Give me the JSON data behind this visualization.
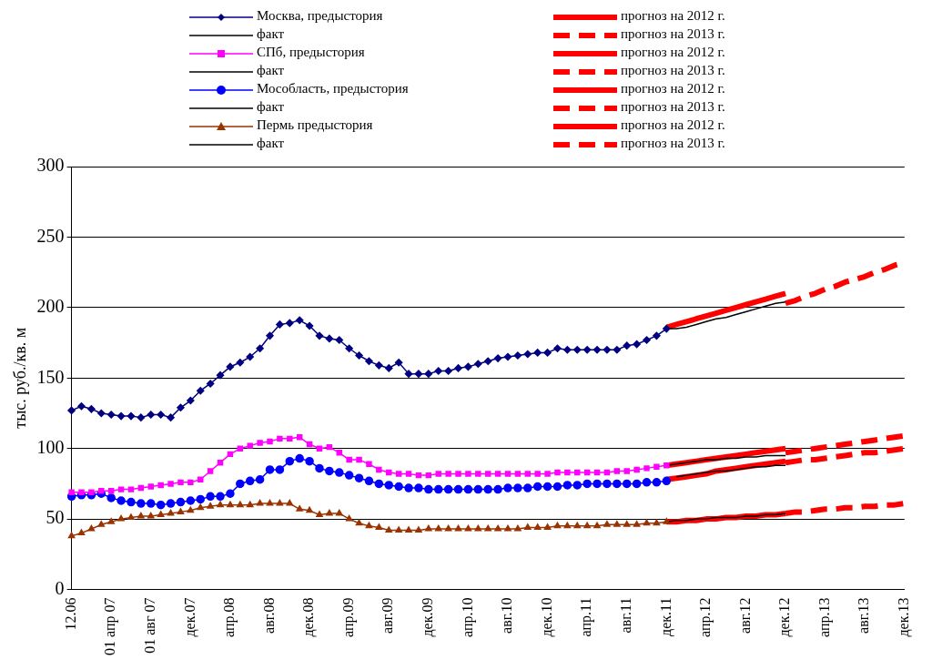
{
  "chart_data": {
    "type": "line",
    "ylabel": "тыс. руб./кв. м",
    "ylim": [
      0,
      300
    ],
    "yticks": [
      0,
      50,
      100,
      150,
      200,
      250,
      300
    ],
    "grid": "y",
    "legend": "top",
    "categories": [
      "12.06",
      null,
      null,
      null,
      "01 апр 07",
      null,
      null,
      null,
      "01 авг 07",
      null,
      null,
      null,
      "дек.07",
      null,
      null,
      null,
      "апр.08",
      null,
      null,
      null,
      "авг.08",
      null,
      null,
      null,
      "дек.08",
      null,
      null,
      null,
      "апр.09",
      null,
      null,
      null,
      "авг.09",
      null,
      null,
      null,
      "дек.09",
      null,
      null,
      null,
      "апр.10",
      null,
      null,
      null,
      "авг.10",
      null,
      null,
      null,
      "дек.10",
      null,
      null,
      null,
      "апр.11",
      null,
      null,
      null,
      "авг.11",
      null,
      null,
      null,
      "дек.11",
      null,
      null,
      null,
      "апр.12",
      null,
      null,
      null,
      "авг.12",
      null,
      null,
      null,
      "дек.12",
      null,
      null,
      null,
      "апр.13",
      null,
      null,
      null,
      "авг.13",
      null,
      null,
      null,
      "дек.13"
    ],
    "series": [
      {
        "name": "Москва, предыстория",
        "color": "#000080",
        "marker": "diamond",
        "line_style": "solid",
        "values": [
          127,
          130,
          128,
          125,
          124,
          123,
          123,
          122,
          124,
          124,
          122,
          129,
          134,
          141,
          146,
          152,
          158,
          161,
          165,
          171,
          180,
          188,
          189,
          191,
          187,
          180,
          178,
          177,
          171,
          166,
          162,
          159,
          157,
          161,
          153,
          153,
          153,
          155,
          155,
          157,
          158,
          160,
          162,
          164,
          165,
          166,
          167,
          168,
          168,
          171,
          170,
          170,
          170,
          170,
          170,
          170,
          173,
          174,
          177,
          180,
          185,
          null,
          null,
          null,
          null,
          null,
          null,
          null,
          null,
          null,
          null,
          null,
          null,
          null,
          null,
          null,
          null,
          null,
          null,
          null,
          null,
          null,
          null,
          null,
          null
        ]
      },
      {
        "name": "факт",
        "color": "#000000",
        "marker": "none",
        "line_style": "solid",
        "values": [
          null,
          null,
          null,
          null,
          null,
          null,
          null,
          null,
          null,
          null,
          null,
          null,
          null,
          null,
          null,
          null,
          null,
          null,
          null,
          null,
          null,
          null,
          null,
          null,
          null,
          null,
          null,
          null,
          null,
          null,
          null,
          null,
          null,
          null,
          null,
          null,
          null,
          null,
          null,
          null,
          null,
          null,
          null,
          null,
          null,
          null,
          null,
          null,
          null,
          null,
          null,
          null,
          null,
          null,
          null,
          null,
          null,
          null,
          null,
          null,
          185,
          185,
          186,
          188,
          190,
          192,
          193,
          195,
          197,
          199,
          201,
          203,
          204,
          null,
          null,
          null,
          null,
          null,
          null,
          null,
          null,
          null,
          null,
          null,
          null
        ]
      },
      {
        "name": "прогноз на 2012 г.",
        "color": "#ff0000",
        "marker": "none",
        "line_style": "solid",
        "values": [
          null,
          null,
          null,
          null,
          null,
          null,
          null,
          null,
          null,
          null,
          null,
          null,
          null,
          null,
          null,
          null,
          null,
          null,
          null,
          null,
          null,
          null,
          null,
          null,
          null,
          null,
          null,
          null,
          null,
          null,
          null,
          null,
          null,
          null,
          null,
          null,
          null,
          null,
          null,
          null,
          null,
          null,
          null,
          null,
          null,
          null,
          null,
          null,
          null,
          null,
          null,
          null,
          null,
          null,
          null,
          null,
          null,
          null,
          null,
          null,
          186,
          188,
          190,
          192,
          194,
          196,
          198,
          200,
          202,
          204,
          206,
          208,
          210,
          null,
          null,
          null,
          null,
          null,
          null,
          null,
          null,
          null,
          null,
          null,
          null
        ]
      },
      {
        "name": "прогноз на 2013 г.",
        "color": "#ff0000",
        "marker": "none",
        "line_style": "dashed",
        "values": [
          null,
          null,
          null,
          null,
          null,
          null,
          null,
          null,
          null,
          null,
          null,
          null,
          null,
          null,
          null,
          null,
          null,
          null,
          null,
          null,
          null,
          null,
          null,
          null,
          null,
          null,
          null,
          null,
          null,
          null,
          null,
          null,
          null,
          null,
          null,
          null,
          null,
          null,
          null,
          null,
          null,
          null,
          null,
          null,
          null,
          null,
          null,
          null,
          null,
          null,
          null,
          null,
          null,
          null,
          null,
          null,
          null,
          null,
          null,
          null,
          null,
          null,
          null,
          null,
          null,
          null,
          null,
          null,
          null,
          null,
          null,
          null,
          203,
          205,
          208,
          210,
          213,
          215,
          218,
          220,
          222,
          225,
          227,
          230,
          232
        ]
      },
      {
        "name": "СПб, предыстория",
        "color": "#ff00ff",
        "marker": "square",
        "line_style": "solid",
        "values": [
          69,
          69,
          69,
          70,
          70,
          71,
          71,
          72,
          73,
          74,
          75,
          76,
          76,
          78,
          84,
          90,
          96,
          100,
          102,
          104,
          105,
          107,
          107,
          108,
          103,
          100,
          101,
          97,
          92,
          92,
          89,
          85,
          83,
          82,
          82,
          81,
          81,
          82,
          82,
          82,
          82,
          82,
          82,
          82,
          82,
          82,
          82,
          82,
          82,
          83,
          83,
          83,
          83,
          83,
          83,
          84,
          84,
          85,
          86,
          87,
          88,
          null,
          null,
          null,
          null,
          null,
          null,
          null,
          null,
          null,
          null,
          null,
          null,
          null,
          null,
          null,
          null,
          null,
          null,
          null,
          null,
          null,
          null,
          null,
          null
        ]
      },
      {
        "name": "факт",
        "color": "#000000",
        "marker": "none",
        "line_style": "solid",
        "values": [
          null,
          null,
          null,
          null,
          null,
          null,
          null,
          null,
          null,
          null,
          null,
          null,
          null,
          null,
          null,
          null,
          null,
          null,
          null,
          null,
          null,
          null,
          null,
          null,
          null,
          null,
          null,
          null,
          null,
          null,
          null,
          null,
          null,
          null,
          null,
          null,
          null,
          null,
          null,
          null,
          null,
          null,
          null,
          null,
          null,
          null,
          null,
          null,
          null,
          null,
          null,
          null,
          null,
          null,
          null,
          null,
          null,
          null,
          null,
          null,
          88,
          89,
          90,
          91,
          92,
          92,
          93,
          93,
          94,
          94,
          95,
          95,
          95,
          null,
          null,
          null,
          null,
          null,
          null,
          null,
          null,
          null,
          null,
          null,
          null
        ]
      },
      {
        "name": "прогноз на 2012 г.",
        "color": "#ff0000",
        "marker": "none",
        "line_style": "solid",
        "values": [
          null,
          null,
          null,
          null,
          null,
          null,
          null,
          null,
          null,
          null,
          null,
          null,
          null,
          null,
          null,
          null,
          null,
          null,
          null,
          null,
          null,
          null,
          null,
          null,
          null,
          null,
          null,
          null,
          null,
          null,
          null,
          null,
          null,
          null,
          null,
          null,
          null,
          null,
          null,
          null,
          null,
          null,
          null,
          null,
          null,
          null,
          null,
          null,
          null,
          null,
          null,
          null,
          null,
          null,
          null,
          null,
          null,
          null,
          null,
          null,
          88,
          89,
          90,
          91,
          92,
          93,
          94,
          95,
          96,
          97,
          98,
          99,
          100,
          null,
          null,
          null,
          null,
          null,
          null,
          null,
          null,
          null,
          null,
          null,
          null
        ]
      },
      {
        "name": "прогноз на 2013 г.",
        "color": "#ff0000",
        "marker": "none",
        "line_style": "dashed",
        "values": [
          null,
          null,
          null,
          null,
          null,
          null,
          null,
          null,
          null,
          null,
          null,
          null,
          null,
          null,
          null,
          null,
          null,
          null,
          null,
          null,
          null,
          null,
          null,
          null,
          null,
          null,
          null,
          null,
          null,
          null,
          null,
          null,
          null,
          null,
          null,
          null,
          null,
          null,
          null,
          null,
          null,
          null,
          null,
          null,
          null,
          null,
          null,
          null,
          null,
          null,
          null,
          null,
          null,
          null,
          null,
          null,
          null,
          null,
          null,
          null,
          null,
          null,
          null,
          null,
          null,
          null,
          null,
          null,
          null,
          null,
          null,
          null,
          97,
          98,
          99,
          100,
          101,
          102,
          103,
          104,
          105,
          106,
          107,
          108,
          109
        ]
      },
      {
        "name": "Мособласть, предыстория",
        "color": "#0000ff",
        "marker": "circle",
        "line_style": "solid",
        "values": [
          66,
          67,
          67,
          68,
          65,
          63,
          62,
          61,
          61,
          60,
          61,
          62,
          63,
          64,
          66,
          66,
          68,
          75,
          77,
          78,
          85,
          85,
          91,
          93,
          91,
          86,
          84,
          83,
          81,
          79,
          77,
          75,
          74,
          73,
          72,
          72,
          71,
          71,
          71,
          71,
          71,
          71,
          71,
          71,
          72,
          72,
          72,
          73,
          73,
          73,
          74,
          74,
          75,
          75,
          75,
          75,
          75,
          75,
          76,
          76,
          77,
          null,
          null,
          null,
          null,
          null,
          null,
          null,
          null,
          null,
          null,
          null,
          null,
          null,
          null,
          null,
          null,
          null,
          null,
          null,
          null,
          null,
          null,
          null,
          null
        ]
      },
      {
        "name": "факт",
        "color": "#000000",
        "marker": "none",
        "line_style": "solid",
        "values": [
          null,
          null,
          null,
          null,
          null,
          null,
          null,
          null,
          null,
          null,
          null,
          null,
          null,
          null,
          null,
          null,
          null,
          null,
          null,
          null,
          null,
          null,
          null,
          null,
          null,
          null,
          null,
          null,
          null,
          null,
          null,
          null,
          null,
          null,
          null,
          null,
          null,
          null,
          null,
          null,
          null,
          null,
          null,
          null,
          null,
          null,
          null,
          null,
          null,
          null,
          null,
          null,
          null,
          null,
          null,
          null,
          null,
          null,
          null,
          null,
          null,
          80,
          81,
          82,
          83,
          84,
          84,
          85,
          86,
          87,
          87,
          88,
          88,
          null,
          null,
          null,
          null,
          null,
          null,
          null,
          null,
          null,
          null,
          null,
          null
        ]
      },
      {
        "name": "прогноз на 2012 г.",
        "color": "#ff0000",
        "marker": "none",
        "line_style": "solid",
        "values": [
          null,
          null,
          null,
          null,
          null,
          null,
          null,
          null,
          null,
          null,
          null,
          null,
          null,
          null,
          null,
          null,
          null,
          null,
          null,
          null,
          null,
          null,
          null,
          null,
          null,
          null,
          null,
          null,
          null,
          null,
          null,
          null,
          null,
          null,
          null,
          null,
          null,
          null,
          null,
          null,
          null,
          null,
          null,
          null,
          null,
          null,
          null,
          null,
          null,
          null,
          null,
          null,
          null,
          null,
          null,
          null,
          null,
          null,
          null,
          null,
          78,
          79,
          80,
          81,
          82,
          84,
          85,
          86,
          87,
          88,
          89,
          90,
          91,
          null,
          null,
          null,
          null,
          null,
          null,
          null,
          null,
          null,
          null,
          null,
          null
        ]
      },
      {
        "name": "прогноз на 2013 г.",
        "color": "#ff0000",
        "marker": "none",
        "line_style": "dashed",
        "values": [
          null,
          null,
          null,
          null,
          null,
          null,
          null,
          null,
          null,
          null,
          null,
          null,
          null,
          null,
          null,
          null,
          null,
          null,
          null,
          null,
          null,
          null,
          null,
          null,
          null,
          null,
          null,
          null,
          null,
          null,
          null,
          null,
          null,
          null,
          null,
          null,
          null,
          null,
          null,
          null,
          null,
          null,
          null,
          null,
          null,
          null,
          null,
          null,
          null,
          null,
          null,
          null,
          null,
          null,
          null,
          null,
          null,
          null,
          null,
          null,
          null,
          null,
          null,
          null,
          null,
          null,
          null,
          null,
          null,
          null,
          null,
          null,
          90,
          91,
          92,
          92,
          93,
          94,
          95,
          96,
          97,
          97,
          98,
          99,
          100
        ]
      },
      {
        "name": "Пермь предыстория",
        "color": "#993300",
        "marker": "triangle",
        "line_style": "solid",
        "values": [
          38,
          40,
          43,
          46,
          48,
          50,
          51,
          52,
          52,
          53,
          54,
          55,
          56,
          58,
          59,
          60,
          60,
          60,
          60,
          61,
          61,
          61,
          61,
          57,
          56,
          53,
          54,
          54,
          50,
          47,
          45,
          44,
          42,
          42,
          42,
          42,
          43,
          43,
          43,
          43,
          43,
          43,
          43,
          43,
          43,
          43,
          44,
          44,
          44,
          45,
          45,
          45,
          45,
          45,
          46,
          46,
          46,
          46,
          47,
          47,
          48,
          null,
          null,
          null,
          null,
          null,
          null,
          null,
          null,
          null,
          null,
          null,
          null,
          null,
          null,
          null,
          null,
          null,
          null,
          null,
          null,
          null,
          null,
          null,
          null
        ]
      },
      {
        "name": "факт",
        "color": "#000000",
        "marker": "none",
        "line_style": "solid",
        "values": [
          null,
          null,
          null,
          null,
          null,
          null,
          null,
          null,
          null,
          null,
          null,
          null,
          null,
          null,
          null,
          null,
          null,
          null,
          null,
          null,
          null,
          null,
          null,
          null,
          null,
          null,
          null,
          null,
          null,
          null,
          null,
          null,
          null,
          null,
          null,
          null,
          null,
          null,
          null,
          null,
          null,
          null,
          null,
          null,
          null,
          null,
          null,
          null,
          null,
          null,
          null,
          null,
          null,
          null,
          null,
          null,
          null,
          null,
          null,
          null,
          48,
          49,
          49,
          50,
          50,
          51,
          51,
          51,
          52,
          52,
          53,
          53,
          54,
          null,
          null,
          null,
          null,
          null,
          null,
          null,
          null,
          null,
          null,
          null,
          null
        ]
      },
      {
        "name": "прогноз на 2012 г.",
        "color": "#ff0000",
        "marker": "none",
        "line_style": "solid",
        "values": [
          null,
          null,
          null,
          null,
          null,
          null,
          null,
          null,
          null,
          null,
          null,
          null,
          null,
          null,
          null,
          null,
          null,
          null,
          null,
          null,
          null,
          null,
          null,
          null,
          null,
          null,
          null,
          null,
          null,
          null,
          null,
          null,
          null,
          null,
          null,
          null,
          null,
          null,
          null,
          null,
          null,
          null,
          null,
          null,
          null,
          null,
          null,
          null,
          null,
          null,
          null,
          null,
          null,
          null,
          null,
          null,
          null,
          null,
          null,
          null,
          48,
          48,
          49,
          49,
          50,
          50,
          51,
          51,
          52,
          52,
          53,
          53,
          54,
          null,
          null,
          null,
          null,
          null,
          null,
          null,
          null,
          null,
          null,
          null,
          null
        ]
      },
      {
        "name": "прогноз на 2013 г.",
        "color": "#ff0000",
        "marker": "none",
        "line_style": "dashed",
        "values": [
          null,
          null,
          null,
          null,
          null,
          null,
          null,
          null,
          null,
          null,
          null,
          null,
          null,
          null,
          null,
          null,
          null,
          null,
          null,
          null,
          null,
          null,
          null,
          null,
          null,
          null,
          null,
          null,
          null,
          null,
          null,
          null,
          null,
          null,
          null,
          null,
          null,
          null,
          null,
          null,
          null,
          null,
          null,
          null,
          null,
          null,
          null,
          null,
          null,
          null,
          null,
          null,
          null,
          null,
          null,
          null,
          null,
          null,
          null,
          null,
          null,
          null,
          null,
          null,
          null,
          null,
          null,
          null,
          null,
          null,
          null,
          null,
          54,
          55,
          55,
          56,
          57,
          57,
          58,
          58,
          59,
          59,
          60,
          60,
          61
        ]
      }
    ]
  }
}
